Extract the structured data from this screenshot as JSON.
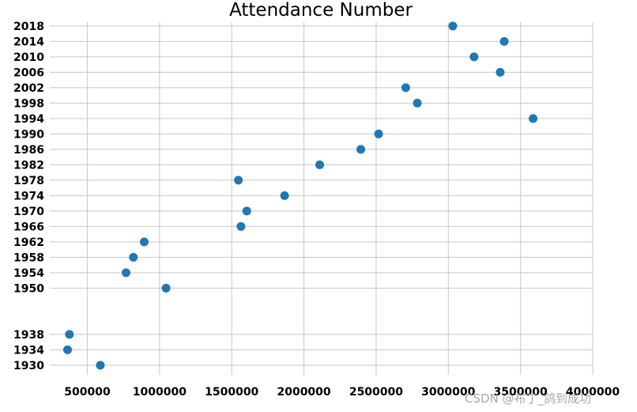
{
  "chart_data": {
    "type": "scatter",
    "title": "Attendance Number",
    "xlabel": "",
    "ylabel": "",
    "xlim": [
      240000,
      4000000
    ],
    "ylim": [
      1927.5,
      2019
    ],
    "x_ticks": [
      500000,
      1000000,
      1500000,
      2000000,
      2500000,
      3000000,
      3500000,
      4000000
    ],
    "x_tick_labels": [
      "500000",
      "1000000",
      "1500000",
      "2000000",
      "2500000",
      "3000000",
      "3500000",
      "4000000"
    ],
    "y_ticks": [
      1930,
      1934,
      1938,
      1950,
      1954,
      1958,
      1962,
      1966,
      1970,
      1974,
      1978,
      1982,
      1986,
      1990,
      1994,
      1998,
      2002,
      2006,
      2010,
      2014,
      2018
    ],
    "y_tick_labels": [
      "1930",
      "1934",
      "1938",
      "1950",
      "1954",
      "1958",
      "1962",
      "1966",
      "1970",
      "1974",
      "1978",
      "1982",
      "1986",
      "1990",
      "1994",
      "1998",
      "2002",
      "2006",
      "2010",
      "2014",
      "2018"
    ],
    "grid": true,
    "marker_color": "#1f77b4",
    "points": [
      {
        "year": 1930,
        "attendance": 590000
      },
      {
        "year": 1934,
        "attendance": 363000
      },
      {
        "year": 1938,
        "attendance": 376000
      },
      {
        "year": 1950,
        "attendance": 1045000
      },
      {
        "year": 1954,
        "attendance": 768000
      },
      {
        "year": 1958,
        "attendance": 819000
      },
      {
        "year": 1962,
        "attendance": 894000
      },
      {
        "year": 1966,
        "attendance": 1564000
      },
      {
        "year": 1970,
        "attendance": 1604000
      },
      {
        "year": 1974,
        "attendance": 1866000
      },
      {
        "year": 1978,
        "attendance": 1546000
      },
      {
        "year": 1982,
        "attendance": 2109000
      },
      {
        "year": 1986,
        "attendance": 2394000
      },
      {
        "year": 1990,
        "attendance": 2517000
      },
      {
        "year": 1994,
        "attendance": 3587000
      },
      {
        "year": 1998,
        "attendance": 2785000
      },
      {
        "year": 2002,
        "attendance": 2705000
      },
      {
        "year": 2006,
        "attendance": 3359000
      },
      {
        "year": 2010,
        "attendance": 3178000
      },
      {
        "year": 2014,
        "attendance": 3387000
      },
      {
        "year": 2018,
        "attendance": 3031000
      }
    ]
  },
  "watermark": "CSDN @布丁_鸽到成功"
}
